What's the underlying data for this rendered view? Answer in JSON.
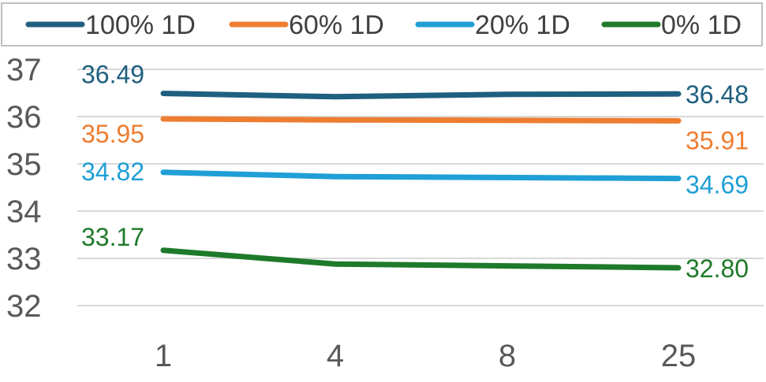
{
  "chart_data": {
    "type": "line",
    "categories": [
      "1",
      "4",
      "8",
      "25"
    ],
    "ylim": [
      32,
      37
    ],
    "yticks": [
      32,
      33,
      34,
      35,
      36,
      37
    ],
    "grid": true,
    "legend_position": "top",
    "series": [
      {
        "name": "100% 1D",
        "color": "#1f5f7f",
        "values": [
          36.49,
          36.42,
          36.47,
          36.48
        ],
        "labels": {
          "first": "36.49",
          "last": "36.48"
        }
      },
      {
        "name": "60% 1D",
        "color": "#ed7d31",
        "values": [
          35.95,
          35.93,
          35.92,
          35.91
        ],
        "labels": {
          "first": "35.95",
          "last": "35.91"
        }
      },
      {
        "name": "20% 1D",
        "color": "#1f9fd6",
        "values": [
          34.82,
          34.73,
          34.71,
          34.69
        ],
        "labels": {
          "first": "34.82",
          "last": "34.69"
        }
      },
      {
        "name": "0% 1D",
        "color": "#1e7a2a",
        "values": [
          33.17,
          32.88,
          32.84,
          32.8
        ],
        "labels": {
          "first": "33.17",
          "last": "32.80"
        }
      }
    ]
  }
}
